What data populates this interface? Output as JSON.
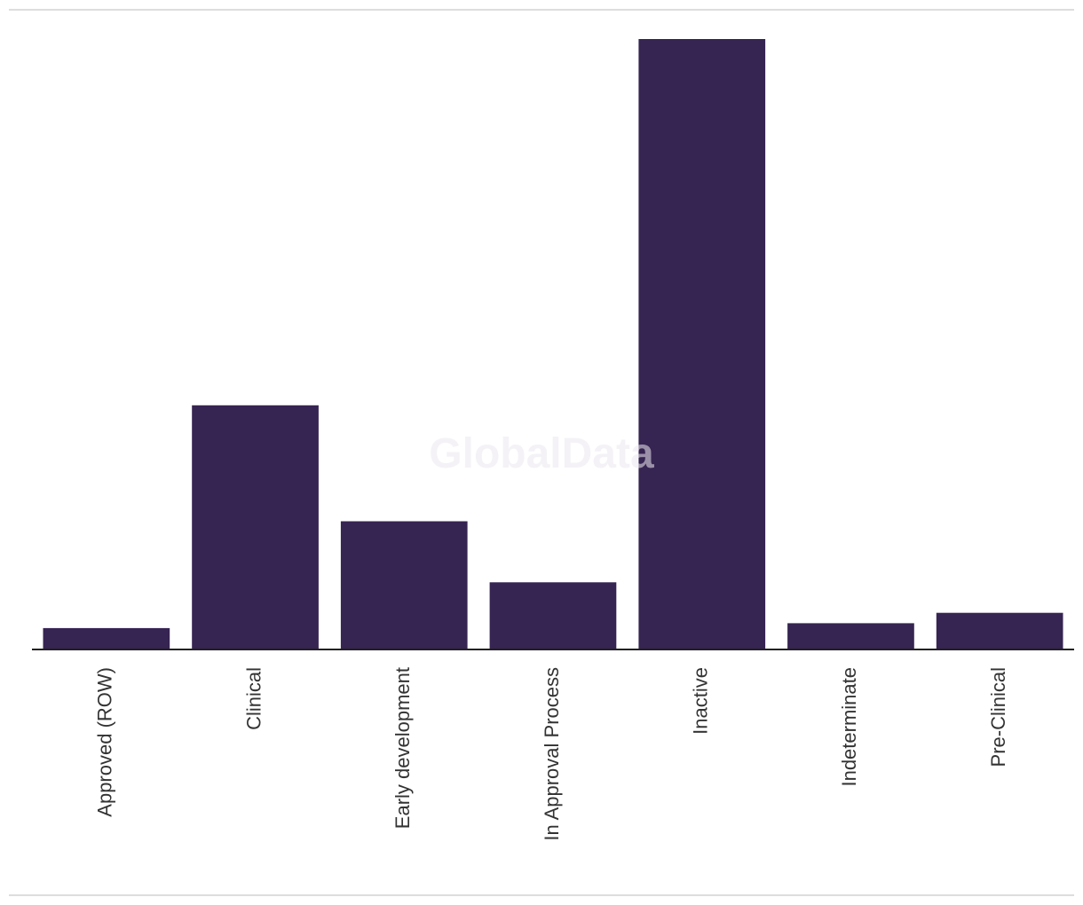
{
  "watermark": "GlobalData",
  "chart_data": {
    "type": "bar",
    "title": "",
    "xlabel": "",
    "ylabel": "",
    "categories": [
      "Approved (ROW)",
      "Clinical",
      "Early development",
      "In Approval Process",
      "Inactive",
      "Indeterminate",
      "Pre-Clinical"
    ],
    "values": [
      3.5,
      40,
      21,
      11,
      100,
      4.3,
      6
    ],
    "ylim": [
      0,
      100
    ],
    "grid": false,
    "legend": "none",
    "bar_color": "#362452"
  }
}
